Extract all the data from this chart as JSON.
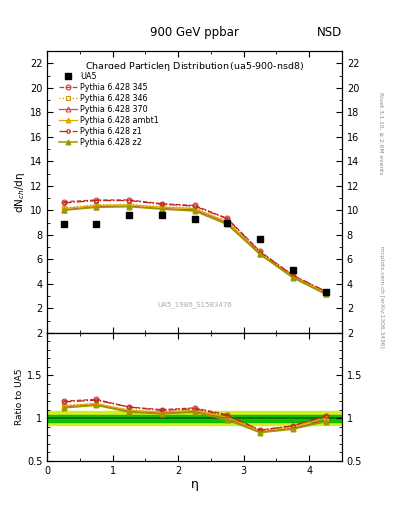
{
  "title_top": "900 GeV ppbar",
  "title_right": "NSD",
  "plot_title": "Charged Particleη Distribution",
  "plot_subtitle": "(ua5-900-nsd8)",
  "watermark": "UA5_1986_S1583476",
  "ylabel_main": "dN$_{ch}$/dη",
  "ylabel_ratio": "Ratio to UA5",
  "xlabel": "η",
  "right_label_top": "Rivet 3.1.10, ≥ 2.6M events",
  "right_label_bot": "mcplots.cern.ch [arXiv:1306.3436]",
  "ua5_x": [
    0.25,
    0.75,
    1.25,
    1.75,
    2.25,
    2.75,
    3.25,
    3.75,
    4.25
  ],
  "ua5_y": [
    8.9,
    8.9,
    9.6,
    9.6,
    9.3,
    9.0,
    7.7,
    5.15,
    3.3
  ],
  "eta_x": [
    0.25,
    0.75,
    1.25,
    1.75,
    2.25,
    2.75,
    3.25,
    3.75,
    4.25
  ],
  "py345_y": [
    10.7,
    10.85,
    10.85,
    10.55,
    10.4,
    9.35,
    6.65,
    4.7,
    3.35
  ],
  "py346_y": [
    10.2,
    10.45,
    10.5,
    10.3,
    10.2,
    9.1,
    6.5,
    4.6,
    3.2
  ],
  "py370_y": [
    10.05,
    10.3,
    10.35,
    10.15,
    10.05,
    8.95,
    6.45,
    4.55,
    3.2
  ],
  "pyambt1_y": [
    10.15,
    10.4,
    10.45,
    10.25,
    10.15,
    9.05,
    6.55,
    4.65,
    3.3
  ],
  "pyz1_y": [
    10.6,
    10.8,
    10.8,
    10.5,
    10.35,
    9.3,
    6.6,
    4.7,
    3.4
  ],
  "pyz2_y": [
    10.0,
    10.25,
    10.3,
    10.1,
    9.95,
    8.85,
    6.4,
    4.5,
    3.15
  ],
  "ratio345": [
    1.2,
    1.22,
    1.13,
    1.1,
    1.12,
    1.04,
    0.86,
    0.91,
    1.02
  ],
  "ratio346": [
    1.15,
    1.17,
    1.1,
    1.07,
    1.1,
    1.01,
    0.85,
    0.89,
    0.97
  ],
  "ratio370": [
    1.13,
    1.16,
    1.08,
    1.06,
    1.08,
    0.99,
    0.84,
    0.88,
    0.97
  ],
  "ratioambt1": [
    1.14,
    1.17,
    1.09,
    1.07,
    1.09,
    1.01,
    0.85,
    0.9,
    1.0
  ],
  "ratioz1": [
    1.19,
    1.21,
    1.13,
    1.09,
    1.11,
    1.03,
    0.86,
    0.91,
    1.03
  ],
  "ratioz2": [
    1.12,
    1.15,
    1.07,
    1.05,
    1.07,
    0.98,
    0.83,
    0.87,
    0.96
  ],
  "color_345": "#cc3333",
  "color_346": "#cc9900",
  "color_370": "#dd4444",
  "color_ambt1": "#ddaa00",
  "color_z1": "#bb2222",
  "color_z2": "#999900",
  "ylim_main": [
    0,
    23
  ],
  "ylim_ratio": [
    0.5,
    2.0
  ],
  "xlim": [
    0.0,
    4.5
  ],
  "band_inner_color": "#00bb00",
  "band_outer_color": "#ccee00"
}
